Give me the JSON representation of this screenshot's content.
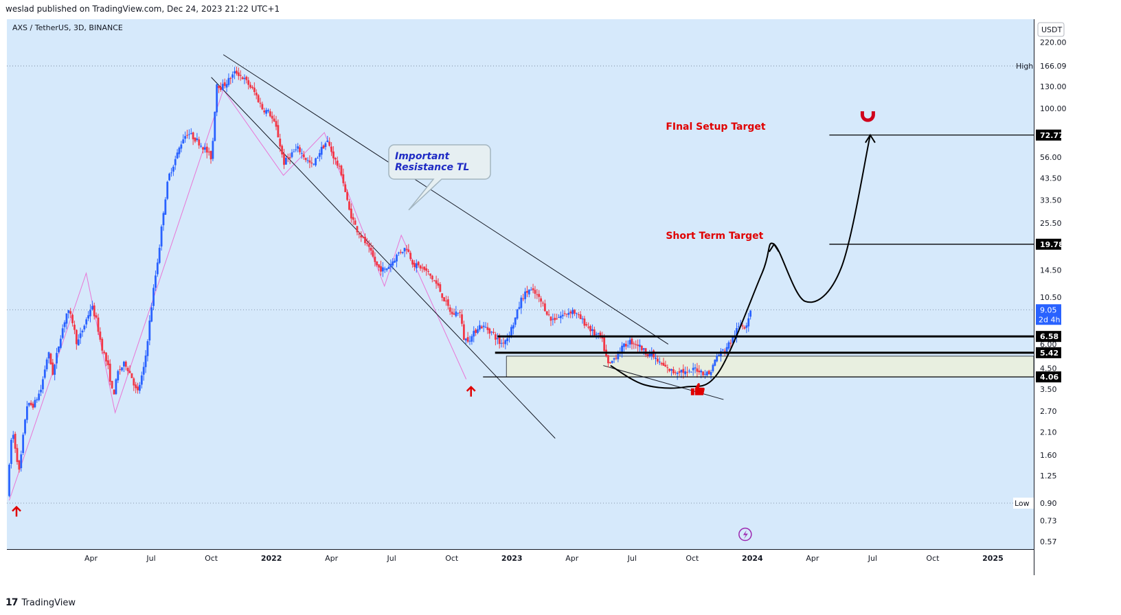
{
  "header": {
    "publish_info": "weslad published on TradingView.com, Dec 24, 2023 21:22 UTC+1"
  },
  "footer": {
    "brand": "TradingView",
    "logo_mark": "17"
  },
  "colors": {
    "background": "#d6e9fb",
    "up_candle": "#2962ff",
    "down_candle": "#f23645",
    "annotation_red": "#e00000",
    "pattern_pink": "#e975d6",
    "level_box": "#e8efe0"
  },
  "chart_data": {
    "type": "candlestick",
    "symbol_label": "AXS / TetherUS, 3D, BINANCE",
    "currency": "USDT",
    "y_scale": "log",
    "ylim": [
      0.52,
      290
    ],
    "y_ticks": [
      220,
      130,
      100,
      56,
      43.5,
      33.5,
      25.5,
      14.5,
      10.5,
      4.5,
      3.5,
      2.7,
      2.1,
      1.6,
      1.25,
      0.73,
      0.57
    ],
    "y_tick_labels": [
      "220.00",
      "130.00",
      "100.00",
      "56.00",
      "43.50",
      "33.50",
      "25.50",
      "14.50",
      "10.50",
      "4.50",
      "3.50",
      "2.70",
      "2.10",
      "1.60",
      "1.25",
      "0.73",
      "0.57"
    ],
    "x_ticks": [
      {
        "label": "Apr",
        "t": 2021.25
      },
      {
        "label": "Jul",
        "t": 2021.5
      },
      {
        "label": "Oct",
        "t": 2021.75
      },
      {
        "label": "2022",
        "t": 2022.0
      },
      {
        "label": "Apr",
        "t": 2022.25
      },
      {
        "label": "Jul",
        "t": 2022.5
      },
      {
        "label": "Oct",
        "t": 2022.75
      },
      {
        "label": "2023",
        "t": 2023.0
      },
      {
        "label": "Apr",
        "t": 2023.25
      },
      {
        "label": "Jul",
        "t": 2023.5
      },
      {
        "label": "Oct",
        "t": 2023.75
      },
      {
        "label": "2024",
        "t": 2024.0
      },
      {
        "label": "Apr",
        "t": 2024.25
      },
      {
        "label": "Jul",
        "t": 2024.5
      },
      {
        "label": "Oct",
        "t": 2024.75
      },
      {
        "label": "2025",
        "t": 2025.0
      }
    ],
    "xlim": [
      2020.9,
      2025.17
    ],
    "price_path": [
      [
        2020.91,
        1.0
      ],
      [
        2020.93,
        2.2
      ],
      [
        2020.96,
        1.3
      ],
      [
        2020.99,
        2.9
      ],
      [
        2021.02,
        2.9
      ],
      [
        2021.05,
        3.5
      ],
      [
        2021.08,
        5.5
      ],
      [
        2021.1,
        4.2
      ],
      [
        2021.13,
        6.5
      ],
      [
        2021.16,
        9.0
      ],
      [
        2021.18,
        8.0
      ],
      [
        2021.2,
        6.0
      ],
      [
        2021.23,
        7.5
      ],
      [
        2021.26,
        9.5
      ],
      [
        2021.28,
        8.0
      ],
      [
        2021.3,
        6.0
      ],
      [
        2021.33,
        4.5
      ],
      [
        2021.35,
        3.2
      ],
      [
        2021.37,
        4.3
      ],
      [
        2021.4,
        4.8
      ],
      [
        2021.43,
        4.0
      ],
      [
        2021.45,
        3.3
      ],
      [
        2021.48,
        4.6
      ],
      [
        2021.5,
        7.5
      ],
      [
        2021.52,
        12
      ],
      [
        2021.54,
        18
      ],
      [
        2021.56,
        30
      ],
      [
        2021.58,
        44
      ],
      [
        2021.61,
        55
      ],
      [
        2021.64,
        70
      ],
      [
        2021.66,
        75
      ],
      [
        2021.7,
        68
      ],
      [
        2021.73,
        62
      ],
      [
        2021.76,
        55
      ],
      [
        2021.78,
        135
      ],
      [
        2021.8,
        128
      ],
      [
        2021.83,
        140
      ],
      [
        2021.86,
        155
      ],
      [
        2021.88,
        148
      ],
      [
        2021.91,
        135
      ],
      [
        2021.94,
        120
      ],
      [
        2021.97,
        100
      ],
      [
        2022.0,
        95
      ],
      [
        2022.03,
        78
      ],
      [
        2022.06,
        52
      ],
      [
        2022.09,
        58
      ],
      [
        2022.12,
        62
      ],
      [
        2022.15,
        55
      ],
      [
        2022.18,
        50
      ],
      [
        2022.21,
        60
      ],
      [
        2022.24,
        68
      ],
      [
        2022.27,
        55
      ],
      [
        2022.3,
        46
      ],
      [
        2022.33,
        30
      ],
      [
        2022.36,
        24
      ],
      [
        2022.39,
        21
      ],
      [
        2022.42,
        18
      ],
      [
        2022.45,
        15
      ],
      [
        2022.48,
        14.5
      ],
      [
        2022.51,
        16
      ],
      [
        2022.54,
        18
      ],
      [
        2022.57,
        19
      ],
      [
        2022.6,
        15.5
      ],
      [
        2022.63,
        15.0
      ],
      [
        2022.66,
        14.0
      ],
      [
        2022.7,
        12.0
      ],
      [
        2022.73,
        10.0
      ],
      [
        2022.76,
        8.5
      ],
      [
        2022.79,
        9.0
      ],
      [
        2022.81,
        6.3
      ],
      [
        2022.84,
        6.5
      ],
      [
        2022.87,
        7.5
      ],
      [
        2022.9,
        7.3
      ],
      [
        2022.93,
        6.8
      ],
      [
        2022.96,
        6.0
      ],
      [
        2022.99,
        6.5
      ],
      [
        2023.02,
        8.0
      ],
      [
        2023.05,
        10.5
      ],
      [
        2023.08,
        11.5
      ],
      [
        2023.11,
        10.8
      ],
      [
        2023.14,
        9.5
      ],
      [
        2023.17,
        8.0
      ],
      [
        2023.2,
        8.3
      ],
      [
        2023.23,
        8.6
      ],
      [
        2023.26,
        9.0
      ],
      [
        2023.29,
        8.2
      ],
      [
        2023.32,
        7.5
      ],
      [
        2023.35,
        6.8
      ],
      [
        2023.38,
        6.5
      ],
      [
        2023.41,
        4.6
      ],
      [
        2023.44,
        5.2
      ],
      [
        2023.47,
        5.8
      ],
      [
        2023.5,
        6.2
      ],
      [
        2023.53,
        6.0
      ],
      [
        2023.56,
        5.5
      ],
      [
        2023.59,
        5.3
      ],
      [
        2023.62,
        4.8
      ],
      [
        2023.65,
        4.5
      ],
      [
        2023.68,
        4.3
      ],
      [
        2023.71,
        4.4
      ],
      [
        2023.74,
        4.2
      ],
      [
        2023.77,
        4.5
      ],
      [
        2023.8,
        4.3
      ],
      [
        2023.83,
        4.2
      ],
      [
        2023.86,
        5.2
      ],
      [
        2023.89,
        5.6
      ],
      [
        2023.92,
        6.2
      ],
      [
        2023.94,
        7.0
      ],
      [
        2023.96,
        7.6
      ],
      [
        2023.98,
        7.4
      ],
      [
        2024.0,
        9.05
      ]
    ],
    "horizontal_levels": [
      {
        "price": 72.77,
        "label": "72.77",
        "t_start": 2024.32
      },
      {
        "price": 19.78,
        "label": "19.78",
        "t_start": 2024.32
      },
      {
        "price": 6.58,
        "label": "6.58",
        "t_start": 2022.94
      },
      {
        "price": 5.42,
        "label": "5.42",
        "t_start": 2022.93
      },
      {
        "price": 4.06,
        "label": "4.06",
        "t_start": 2022.88
      }
    ],
    "high": {
      "label": "High",
      "price": 166.09,
      "value": "166.09"
    },
    "low": {
      "label": "Low",
      "price": 0.9,
      "value": "0.90"
    },
    "last_price": {
      "value": "9.05",
      "countdown": "2d 4h",
      "price": 9.05
    },
    "hidden_tick": "6.00",
    "support_zone": {
      "price_low": 4.06,
      "price_high": 5.2
    },
    "annotations": [
      {
        "text": "FInal Setup Target",
        "t": 2023.64,
        "price": 72.77
      },
      {
        "text": "Short Term Target",
        "t": 2023.64,
        "price": 19.78
      }
    ],
    "callout": {
      "line1": "Important",
      "line2": "Resistance TL"
    },
    "channel_lines": [
      [
        [
          2021.8,
          190
        ],
        [
          2023.65,
          6.0
        ]
      ],
      [
        [
          2021.75,
          145
        ],
        [
          2023.18,
          1.95
        ]
      ],
      [
        [
          2023.38,
          4.65
        ],
        [
          2023.88,
          3.1
        ]
      ]
    ],
    "pink_pattern": [
      [
        2020.91,
        0.93
      ],
      [
        2021.23,
        14.0
      ],
      [
        2021.35,
        2.65
      ],
      [
        2021.8,
        125
      ],
      [
        2022.05,
        45
      ],
      [
        2022.22,
        75
      ],
      [
        2022.47,
        12.0
      ],
      [
        2022.54,
        22
      ],
      [
        2022.81,
        3.95
      ]
    ],
    "projection_path": [
      [
        2023.41,
        4.65
      ],
      [
        2023.55,
        3.7
      ],
      [
        2023.72,
        3.6
      ],
      [
        2023.86,
        4.3
      ],
      [
        2024.04,
        14.0
      ],
      [
        2024.09,
        19.78
      ],
      [
        2024.22,
        10.0
      ],
      [
        2024.37,
        15.0
      ],
      [
        2024.49,
        72.77
      ]
    ],
    "arrow_markers": [
      {
        "t": 2020.94,
        "price": 0.86
      },
      {
        "t": 2022.83,
        "price": 3.6
      }
    ],
    "thumbs_marker": {
      "t": 2023.77,
      "price": 3.6
    },
    "magnet_marker": {
      "t": 2024.48,
      "price": 92
    },
    "lightning_marker": {
      "t": 2023.97,
      "price": 0.62
    }
  }
}
